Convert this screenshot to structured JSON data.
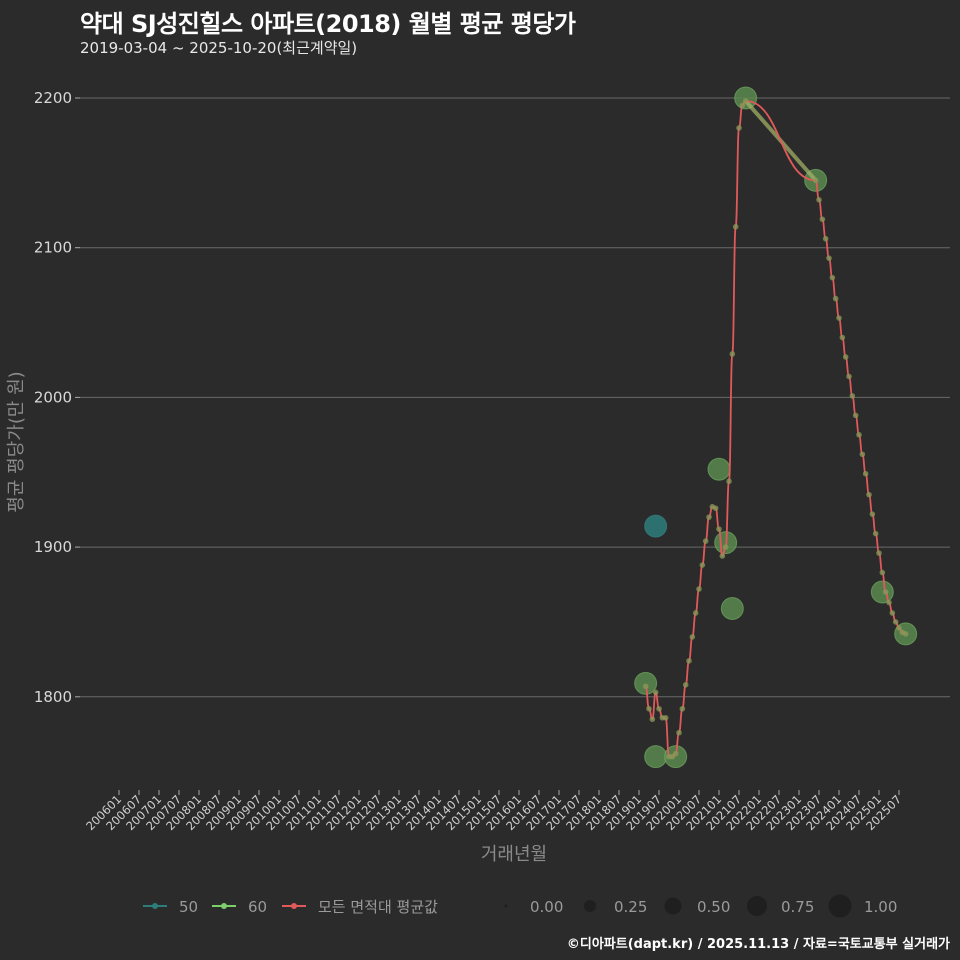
{
  "header": {
    "title": "약대 SJ성진힐스 아파트(2018) 월별 평균 평당가",
    "subtitle": "2019-03-04 ~ 2025-10-20(최근계약일)"
  },
  "footer": {
    "credit": "©디아파트(dapt.kr) / 2025.11.13 / 자료=국토교통부 실거래가"
  },
  "colors": {
    "background": "#2b2b2b",
    "grid": "#6a6a6a",
    "series_50": "#2e7d7d",
    "series_60": "#7ccf6a",
    "series_avg": "#e05a5a",
    "bubble_60": "#5a8a50"
  },
  "chart_data": {
    "type": "scatter",
    "title": "약대 SJ성진힐스 아파트(2018) 월별 평균 평당가",
    "subtitle": "2019-03-04 ~ 2025-10-20(최근계약일)",
    "xlabel": "거래년월",
    "ylabel": "평균 평당가(만 원)",
    "ylim": [
      1745,
      2220
    ],
    "yticks": [
      1800,
      1900,
      2000,
      2100,
      2200
    ],
    "grid": true,
    "xticks": [
      "200601",
      "200607",
      "200701",
      "200707",
      "200801",
      "200807",
      "200901",
      "200907",
      "201001",
      "201007",
      "201101",
      "201107",
      "201201",
      "201207",
      "201301",
      "201307",
      "201401",
      "201407",
      "201501",
      "201507",
      "201601",
      "201607",
      "201701",
      "201707",
      "201801",
      "201807",
      "201901",
      "201907",
      "202001",
      "202007",
      "202101",
      "202107",
      "202201",
      "202207",
      "202301",
      "202307",
      "202401",
      "202407",
      "202501",
      "202507"
    ],
    "legend": {
      "position": "bottom",
      "color_entries": [
        "50",
        "60",
        "모든 면적대 평균값"
      ],
      "size_entries": [
        "0.00",
        "0.25",
        "0.50",
        "0.75",
        "1.00"
      ]
    },
    "series": [
      {
        "name": "50",
        "points": [
          {
            "ym": "201906",
            "value": 1914,
            "size": 0.6
          }
        ]
      },
      {
        "name": "60",
        "points": [
          {
            "ym": "201903",
            "value": 1809,
            "size": 0.6
          },
          {
            "ym": "201906",
            "value": 1760,
            "size": 0.6
          },
          {
            "ym": "201912",
            "value": 1760,
            "size": 0.6
          },
          {
            "ym": "202101",
            "value": 1952,
            "size": 0.6
          },
          {
            "ym": "202103",
            "value": 1903,
            "size": 0.6
          },
          {
            "ym": "202105",
            "value": 1859,
            "size": 0.6
          },
          {
            "ym": "202109",
            "value": 2200,
            "size": 0.6
          },
          {
            "ym": "202306",
            "value": 2145,
            "size": 0.6
          },
          {
            "ym": "202502",
            "value": 1870,
            "size": 0.6
          },
          {
            "ym": "202509",
            "value": 1842,
            "size": 0.6
          }
        ]
      },
      {
        "name": "모든 면적대 평균값",
        "type": "line",
        "points": [
          {
            "ym": "201903",
            "value": 1807
          },
          {
            "ym": "201904",
            "value": 1792
          },
          {
            "ym": "201905",
            "value": 1785
          },
          {
            "ym": "201906",
            "value": 1803
          },
          {
            "ym": "201907",
            "value": 1792
          },
          {
            "ym": "201908",
            "value": 1786
          },
          {
            "ym": "201909",
            "value": 1786
          },
          {
            "ym": "201910",
            "value": 1760
          },
          {
            "ym": "201911",
            "value": 1760
          },
          {
            "ym": "201912",
            "value": 1762
          },
          {
            "ym": "202001",
            "value": 1776
          },
          {
            "ym": "202002",
            "value": 1792
          },
          {
            "ym": "202003",
            "value": 1808
          },
          {
            "ym": "202004",
            "value": 1824
          },
          {
            "ym": "202005",
            "value": 1840
          },
          {
            "ym": "202006",
            "value": 1856
          },
          {
            "ym": "202007",
            "value": 1872
          },
          {
            "ym": "202008",
            "value": 1888
          },
          {
            "ym": "202009",
            "value": 1904
          },
          {
            "ym": "202010",
            "value": 1920
          },
          {
            "ym": "202011",
            "value": 1927
          },
          {
            "ym": "202012",
            "value": 1926
          },
          {
            "ym": "202101",
            "value": 1912
          },
          {
            "ym": "202102",
            "value": 1894
          },
          {
            "ym": "202103",
            "value": 1900
          },
          {
            "ym": "202104",
            "value": 1944
          },
          {
            "ym": "202105",
            "value": 2029
          },
          {
            "ym": "202106",
            "value": 2114
          },
          {
            "ym": "202107",
            "value": 2180
          },
          {
            "ym": "202108",
            "value": 2195
          },
          {
            "ym": "202109",
            "value": 2198
          },
          {
            "ym": "202306",
            "value": 2145
          },
          {
            "ym": "202307",
            "value": 2132
          },
          {
            "ym": "202308",
            "value": 2119
          },
          {
            "ym": "202309",
            "value": 2106
          },
          {
            "ym": "202310",
            "value": 2093
          },
          {
            "ym": "202311",
            "value": 2080
          },
          {
            "ym": "202312",
            "value": 2066
          },
          {
            "ym": "202401",
            "value": 2053
          },
          {
            "ym": "202402",
            "value": 2040
          },
          {
            "ym": "202403",
            "value": 2027
          },
          {
            "ym": "202404",
            "value": 2014
          },
          {
            "ym": "202405",
            "value": 2001
          },
          {
            "ym": "202406",
            "value": 1988
          },
          {
            "ym": "202407",
            "value": 1975
          },
          {
            "ym": "202408",
            "value": 1962
          },
          {
            "ym": "202409",
            "value": 1949
          },
          {
            "ym": "202410",
            "value": 1935
          },
          {
            "ym": "202411",
            "value": 1922
          },
          {
            "ym": "202412",
            "value": 1909
          },
          {
            "ym": "202501",
            "value": 1896
          },
          {
            "ym": "202502",
            "value": 1883
          },
          {
            "ym": "202503",
            "value": 1870
          },
          {
            "ym": "202504",
            "value": 1863
          },
          {
            "ym": "202505",
            "value": 1856
          },
          {
            "ym": "202506",
            "value": 1850
          },
          {
            "ym": "202507",
            "value": 1846
          },
          {
            "ym": "202508",
            "value": 1843
          },
          {
            "ym": "202509",
            "value": 1842
          }
        ]
      }
    ]
  }
}
